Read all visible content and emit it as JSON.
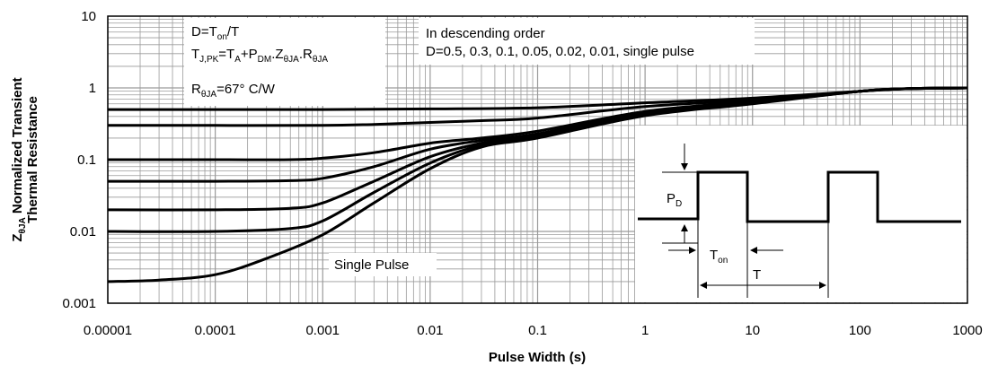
{
  "chart_data": {
    "type": "line",
    "title": "",
    "xlabel": "Pulse Width (s)",
    "ylabel_line1": "ZθJA Normalized Transient",
    "ylabel_line2": "Thermal Resistance",
    "ylabel_main": "Z",
    "ylabel_sub": "θJA",
    "ylabel_rest": " Normalized Transient",
    "x_scale": "log",
    "y_scale": "log",
    "xlim": [
      1e-05,
      1000
    ],
    "ylim": [
      0.001,
      10
    ],
    "grid": true,
    "x_ticks": [
      "0.00001",
      "0.0001",
      "0.001",
      "0.01",
      "0.1",
      "1",
      "10",
      "100",
      "1000"
    ],
    "y_ticks": [
      "10",
      "1",
      "0.1",
      "0.01",
      "0.001"
    ],
    "series": [
      {
        "x": [
          1e-05,
          0.0001,
          0.001,
          0.01,
          0.1,
          1,
          10,
          100,
          300,
          1000
        ],
        "values": [
          0.5,
          0.5,
          0.5,
          0.51,
          0.53,
          0.62,
          0.72,
          0.9,
          0.98,
          1.0
        ]
      },
      {
        "x": [
          1e-05,
          0.0001,
          0.001,
          0.003,
          0.01,
          0.03,
          0.1,
          1,
          10,
          100,
          300,
          1000
        ],
        "values": [
          0.3,
          0.3,
          0.3,
          0.31,
          0.33,
          0.35,
          0.38,
          0.55,
          0.68,
          0.9,
          0.98,
          1.0
        ]
      },
      {
        "x": [
          1e-05,
          0.0001,
          0.0005,
          0.001,
          0.003,
          0.01,
          0.03,
          0.1,
          1,
          10,
          100,
          300,
          1000
        ],
        "values": [
          0.1,
          0.1,
          0.1,
          0.105,
          0.125,
          0.17,
          0.2,
          0.25,
          0.47,
          0.65,
          0.9,
          0.98,
          1.0
        ]
      },
      {
        "x": [
          1e-05,
          0.0001,
          0.0005,
          0.001,
          0.003,
          0.01,
          0.03,
          0.1,
          1,
          10,
          100,
          300,
          1000
        ],
        "values": [
          0.05,
          0.05,
          0.051,
          0.055,
          0.08,
          0.14,
          0.185,
          0.23,
          0.45,
          0.63,
          0.9,
          0.98,
          1.0
        ]
      },
      {
        "x": [
          1e-05,
          0.0001,
          0.0005,
          0.001,
          0.003,
          0.01,
          0.03,
          0.1,
          1,
          10,
          100,
          300,
          1000
        ],
        "values": [
          0.02,
          0.02,
          0.021,
          0.025,
          0.05,
          0.11,
          0.17,
          0.22,
          0.43,
          0.62,
          0.9,
          0.98,
          1.0
        ]
      },
      {
        "x": [
          1e-05,
          0.0001,
          0.0005,
          0.001,
          0.003,
          0.01,
          0.03,
          0.1,
          1,
          10,
          100,
          300,
          1000
        ],
        "values": [
          0.01,
          0.01,
          0.011,
          0.014,
          0.035,
          0.09,
          0.16,
          0.21,
          0.42,
          0.61,
          0.9,
          0.98,
          1.0
        ]
      },
      {
        "x": [
          1e-05,
          3e-05,
          0.0001,
          0.0003,
          0.001,
          0.003,
          0.01,
          0.03,
          0.1,
          1,
          10,
          100,
          300,
          1000
        ],
        "values": [
          0.002,
          0.0021,
          0.0025,
          0.0042,
          0.009,
          0.025,
          0.075,
          0.15,
          0.2,
          0.41,
          0.6,
          0.9,
          0.98,
          1.0
        ]
      }
    ],
    "annotations": {
      "formula_line1": {
        "main": "D=T",
        "sub": "on",
        "tail": "/T"
      },
      "formula_line2": {
        "a": "T",
        "a_sub": "J,PK",
        "b": "=T",
        "b_sub": "A",
        "c": "+P",
        "c_sub": "DM",
        "d": ".Z",
        "d_sub": "θJA",
        "e": ".R",
        "e_sub": "θJA"
      },
      "formula_line3": {
        "main": "R",
        "sub": "θJA",
        "tail": "=67°  C/W"
      },
      "order_line1": "In descending order",
      "order_line2": "D=0.5, 0.3, 0.1, 0.05, 0.02, 0.01, single pulse",
      "single_pulse_label": "Single Pulse",
      "inset_pd": {
        "main": "P",
        "sub": "D"
      },
      "inset_ton": {
        "main": "T",
        "sub": "on"
      },
      "inset_t": "T"
    },
    "line_color": "#000000",
    "grid_color": "#9a9a9a"
  }
}
